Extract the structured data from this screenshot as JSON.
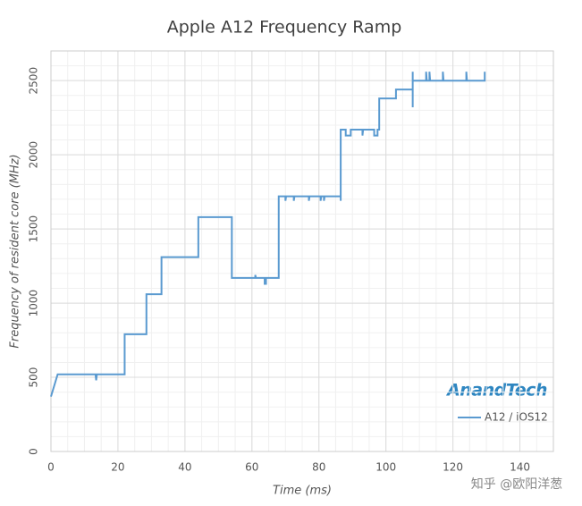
{
  "chart_data": {
    "type": "line",
    "title": "Apple A12 Frequency Ramp",
    "xlabel": "Time (ms)",
    "ylabel": "Frequency of resident core (MHz)",
    "xlim": [
      0,
      150
    ],
    "ylim": [
      0,
      2700
    ],
    "xticks": [
      0,
      20,
      40,
      60,
      80,
      100,
      120,
      140
    ],
    "yticks": [
      0,
      500,
      1000,
      1500,
      2000,
      2500
    ],
    "grid": true,
    "minor_grid": true,
    "legend": "lower right",
    "logo": "AnandTech",
    "watermark": "知乎 @欧阳洋葱",
    "series": [
      {
        "name": "A12 / iOS12",
        "color": "#5a9ad0",
        "x": [
          0,
          2,
          13.3,
          13.5,
          13.7,
          22,
          22,
          28.5,
          28.5,
          33,
          33,
          44,
          44,
          54,
          54,
          61,
          61,
          61.2,
          63.8,
          63.8,
          64.2,
          64.2,
          68,
          68,
          70,
          70,
          70.2,
          72.5,
          72.5,
          72.7,
          77,
          77,
          77.2,
          80.5,
          80.5,
          80.7,
          81.5,
          81.5,
          81.7,
          86.5,
          86.5,
          86.5,
          88,
          88,
          89.5,
          89.5,
          93,
          93,
          93.2,
          96.5,
          96.5,
          97.5,
          97.5,
          98,
          98,
          103,
          103,
          108,
          108,
          108,
          108,
          112,
          112,
          112.2,
          113,
          113,
          113.2,
          117,
          117,
          117.2,
          124,
          124,
          124.2,
          129.5,
          129.5,
          129.5
        ],
        "values": [
          370,
          520,
          520,
          480,
          520,
          520,
          790,
          790,
          1060,
          1060,
          1310,
          1310,
          1580,
          1580,
          1170,
          1170,
          1190,
          1170,
          1170,
          1130,
          1130,
          1170,
          1170,
          1720,
          1720,
          1690,
          1720,
          1720,
          1690,
          1720,
          1720,
          1690,
          1720,
          1720,
          1690,
          1720,
          1720,
          1690,
          1720,
          1720,
          1690,
          2170,
          2170,
          2130,
          2130,
          2170,
          2170,
          2130,
          2170,
          2170,
          2130,
          2130,
          2170,
          2170,
          2380,
          2380,
          2440,
          2440,
          2320,
          2560,
          2500,
          2500,
          2560,
          2500,
          2500,
          2560,
          2500,
          2500,
          2560,
          2500,
          2500,
          2560,
          2500,
          2500,
          2560,
          2500
        ]
      }
    ]
  }
}
